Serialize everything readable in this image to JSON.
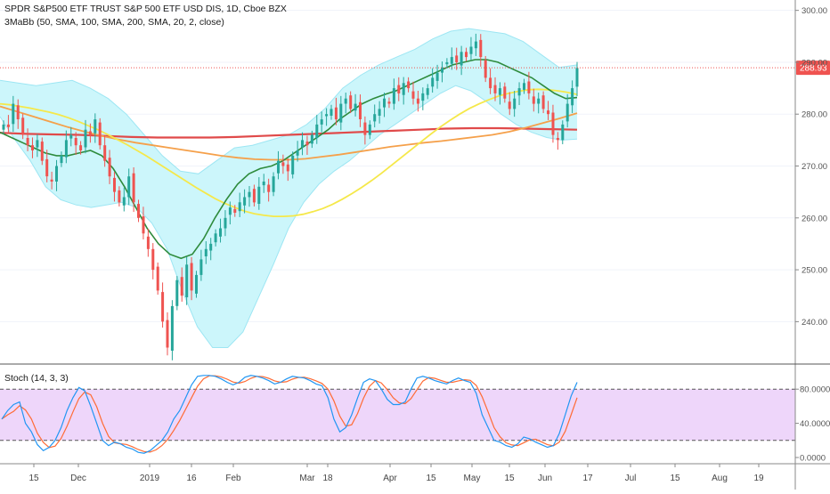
{
  "chart_data": {
    "type": "candlestick",
    "title": "SPDR S&P500 ETF TRUST S&P 500 ETF USD DIS, 1D, Cboe BZX",
    "indicator_label": "3MaBb (50, SMA, 100, SMA, 200, SMA, 20, 2, close)",
    "stoch_label": "Stoch (14, 3, 3)",
    "last_price": "288.93",
    "price_axis": {
      "ticks": [
        "300.00",
        "290.00",
        "280.00",
        "270.00",
        "260.00",
        "250.00",
        "240.00"
      ],
      "ylim": [
        232,
        302
      ]
    },
    "stoch_axis": {
      "ticks": [
        "80.0000",
        "40.0000",
        "0.0000"
      ],
      "bands": [
        20,
        80
      ],
      "ylim": [
        0,
        100
      ]
    },
    "x_axis_labels": [
      "15",
      "Dec",
      "2019",
      "16",
      "Feb",
      "Mar",
      "18",
      "Apr",
      "15",
      "May",
      "15",
      "Jun",
      "17",
      "Jul",
      "15",
      "Aug",
      "19"
    ],
    "colors": {
      "up": "#26a69a",
      "down": "#ef5350",
      "sma50": "#f5e84a",
      "sma100": "#f5a04a",
      "sma200": "#e04a4a",
      "bb_basis": "#2e8b3c",
      "bb_fill": "#ccf6fb",
      "bb_band": "#9de6f3",
      "stoch_k": "#2196f3",
      "stoch_d": "#ff6b35",
      "stoch_fill": "#e8c8f8"
    },
    "ohlc_close": [
      278,
      277.5,
      282,
      279,
      276,
      274,
      273,
      275,
      271,
      268,
      267,
      270,
      272,
      275,
      276,
      274,
      273,
      277,
      276,
      279,
      274,
      271,
      268,
      265,
      263,
      264,
      268,
      263,
      260,
      257,
      254,
      250,
      246,
      240,
      235,
      243,
      248,
      245,
      251,
      246,
      249,
      252,
      254,
      255,
      257,
      258,
      260,
      262,
      261,
      263,
      264,
      265,
      263,
      266,
      267,
      265,
      268,
      271,
      270,
      269,
      272,
      273,
      275,
      274,
      276,
      278,
      279,
      280,
      281,
      279,
      282,
      283,
      281,
      282,
      279,
      276,
      278,
      280,
      281,
      283,
      282,
      285,
      284,
      286,
      285,
      283,
      282,
      284,
      285,
      287,
      288,
      289,
      290,
      291,
      290,
      292,
      291,
      293,
      294,
      291,
      287,
      285,
      284,
      285,
      283,
      281,
      283,
      285,
      286,
      284,
      282,
      283,
      281,
      280,
      276,
      275,
      278,
      282,
      285,
      288.9
    ],
    "sma50": [
      282,
      281.8,
      281.5,
      281.2,
      280.8,
      280.4,
      279.9,
      279.3,
      278.6,
      277.8,
      277.0,
      276.1,
      275.1,
      274.1,
      273.0,
      271.9,
      270.7,
      269.5,
      268.3,
      267.1,
      265.9,
      264.8,
      263.7,
      262.8,
      262.0,
      261.3,
      260.8,
      260.5,
      260.3,
      260.3,
      260.4,
      260.7,
      261.2,
      261.8,
      262.6,
      263.6,
      264.7,
      265.9,
      267.2,
      268.6,
      270.1,
      271.6,
      273.1,
      274.6,
      276.1,
      277.5,
      278.8,
      280.0,
      281.1,
      282.0,
      282.8,
      283.5,
      284.0,
      284.4,
      284.7,
      284.8,
      284.7,
      284.5,
      284.2,
      283.8
    ],
    "sma100": [
      281.5,
      280.5,
      279.5,
      278.5,
      277.5,
      276.6,
      275.8,
      275.1,
      274.5,
      274.0,
      273.5,
      273.0,
      272.5,
      272.0,
      271.6,
      271.3,
      271.2,
      271.2,
      271.4,
      271.8,
      272.2,
      272.7,
      273.2,
      273.7,
      274.1,
      274.5,
      274.8,
      275.2,
      275.6,
      276.0,
      276.6,
      277.4,
      278.3,
      279.2,
      280.2
    ],
    "sma200": [
      276.4,
      276.2,
      276.1,
      276.0,
      275.8,
      275.6,
      275.5,
      275.5,
      275.5,
      275.6,
      275.8,
      276.0,
      276.2,
      276.4,
      276.6,
      276.8,
      277.0,
      277.2,
      277.3,
      277.3,
      277.2,
      277.1,
      277.0
    ],
    "bb_basis": [
      276.5,
      275.5,
      274.5,
      273.5,
      272.5,
      272.0,
      272.0,
      272.5,
      273.0,
      272.0,
      269.5,
      266.0,
      262.0,
      258.0,
      255.0,
      253.0,
      252.2,
      253.0,
      256.0,
      260.0,
      263.5,
      266.5,
      268.5,
      269.5,
      270.0,
      271.0,
      272.5,
      274.0,
      275.5,
      277.0,
      279.0,
      280.5,
      282.0,
      283.0,
      283.8,
      284.5,
      285.5,
      286.5,
      287.5,
      288.5,
      289.5,
      290.0,
      290.5,
      290.5,
      290.0,
      289.0,
      288.0,
      287.0,
      285.5,
      284.0,
      283.0,
      283.2
    ],
    "bb_upper": [
      286.5,
      286.0,
      285.5,
      286.0,
      286.5,
      285.0,
      283.0,
      280.0,
      276.0,
      272.0,
      269.0,
      268.5,
      271.0,
      273.5,
      274.0,
      275.0,
      276.0,
      278.0,
      281.0,
      285.0,
      287.5,
      289.5,
      291.0,
      292.5,
      294.5,
      296.0,
      296.5,
      296.0,
      295.5,
      294.0,
      291.5,
      289.0,
      289.5
    ],
    "bb_lower": [
      279.5,
      275.0,
      271.0,
      266.0,
      263.5,
      262.5,
      262.0,
      262.5,
      263.0,
      262.0,
      259.0,
      254.0,
      246.0,
      239.0,
      235.0,
      235.0,
      238.0,
      244.5,
      251.0,
      258.0,
      263.0,
      266.5,
      269.0,
      271.0,
      273.5,
      276.0,
      278.0,
      280.0,
      282.0,
      284.0,
      285.5,
      284.5,
      282.5,
      280.0,
      278.0,
      276.5,
      275.5,
      275.0,
      275.2
    ],
    "stoch_k": [
      45,
      55,
      62,
      65,
      40,
      30,
      15,
      8,
      12,
      20,
      35,
      55,
      70,
      82,
      78,
      60,
      40,
      20,
      14,
      18,
      16,
      12,
      10,
      6,
      5,
      8,
      14,
      20,
      30,
      45,
      55,
      70,
      85,
      95,
      96,
      96,
      95,
      92,
      88,
      85,
      88,
      94,
      96,
      95,
      93,
      90,
      86,
      88,
      92,
      95,
      94,
      93,
      90,
      86,
      84,
      70,
      45,
      30,
      35,
      50,
      70,
      88,
      92,
      90,
      80,
      68,
      62,
      62,
      65,
      80,
      93,
      95,
      93,
      90,
      88,
      86,
      90,
      93,
      90,
      88,
      75,
      50,
      35,
      20,
      18,
      14,
      12,
      16,
      24,
      22,
      18,
      15,
      12,
      14,
      28,
      50,
      72,
      88
    ]
  }
}
